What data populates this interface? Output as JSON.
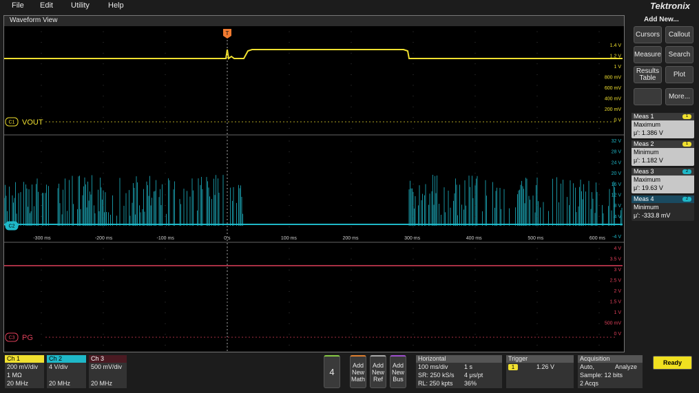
{
  "menu": [
    "File",
    "Edit",
    "Utility",
    "Help"
  ],
  "brand": "Tektronix",
  "waveform_view": {
    "title": "Waveform View",
    "trigger_label": "T",
    "time_labels": [
      "-300 ms",
      "-200 ms",
      "-100 ms",
      "0 s",
      "100 ms",
      "200 ms",
      "300 ms",
      "400 ms",
      "500 ms",
      "600 ms"
    ],
    "panels": [
      {
        "channel": "C1",
        "name": "VOUT",
        "color": "#f0e030",
        "scale": [
          "1.4 V",
          "1.2 V",
          "1 V",
          "800 mV",
          "600 mV",
          "400 mV",
          "200 mV",
          "0 V"
        ]
      },
      {
        "channel": "C2",
        "color": "#1fb8c8",
        "scale": [
          "32 V",
          "28 V",
          "24 V",
          "20 V",
          "16 V",
          "12 V",
          "8 V",
          "4 V",
          "-4 V"
        ]
      },
      {
        "channel": "C3",
        "name": "PG",
        "color": "#e0405a",
        "scale": [
          "4 V",
          "3.5 V",
          "3 V",
          "2.5 V",
          "2 V",
          "1.5 V",
          "1 V",
          "500 mV",
          "0 V"
        ]
      }
    ]
  },
  "add_new": {
    "title": "Add New...",
    "buttons": [
      "Cursors",
      "Callout",
      "Measure",
      "Search",
      "Results Table",
      "Plot",
      "More..."
    ]
  },
  "measurements": [
    {
      "title": "Meas 1",
      "badge": "1",
      "stat": "Maximum",
      "value": "μ': 1.386 V",
      "color": "#f0e030"
    },
    {
      "title": "Meas 2",
      "badge": "1",
      "stat": "Minimum",
      "value": "μ': 1.182 V",
      "color": "#f0e030"
    },
    {
      "title": "Meas 3",
      "badge": "2",
      "stat": "Maximum",
      "value": "μ': 19.63 V",
      "color": "#1fb8c8"
    },
    {
      "title": "Meas 4",
      "badge": "2",
      "stat": "Minimum",
      "value": "μ': -333.8 mV",
      "color": "#1fb8c8"
    }
  ],
  "channels": [
    {
      "title": "Ch 1",
      "lines": [
        "200 mV/div",
        "1 MΩ",
        "20 MHz"
      ],
      "color": "#f0e030"
    },
    {
      "title": "Ch 2",
      "lines": [
        "4 V/div",
        "20 MHz"
      ],
      "color": "#1fb8c8"
    },
    {
      "title": "Ch 3",
      "lines": [
        "500 mV/div",
        "20 MHz"
      ],
      "color": "#e0405a"
    }
  ],
  "count_button": "4",
  "add_buttons": [
    "Add New Math",
    "Add New Ref",
    "Add New Bus"
  ],
  "horizontal": {
    "title": "Horizontal",
    "rows": [
      [
        "100 ms/div",
        "1 s"
      ],
      [
        "SR: 250 kS/s",
        "4 μs/pt"
      ],
      [
        "RL: 250 kpts",
        "36%"
      ]
    ]
  },
  "trigger": {
    "title": "Trigger",
    "source": "1",
    "level": "1.26 V"
  },
  "acquisition": {
    "title": "Acquisition",
    "rows": [
      [
        "Auto,",
        "Analyze"
      ],
      [
        "Sample: 12 bits"
      ],
      [
        "2 Acqs"
      ]
    ]
  },
  "status": "Ready"
}
